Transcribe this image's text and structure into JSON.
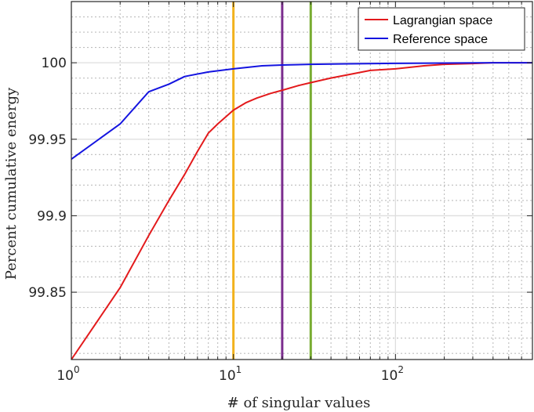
{
  "chart_data": {
    "type": "line",
    "x_scale": "log",
    "xlabel": "# of singular values",
    "ylabel": "Percent cumulative energy",
    "xlim": [
      1,
      700
    ],
    "ylim": [
      99.806,
      100.04
    ],
    "x_ticks": [
      {
        "value": 1,
        "base": "10",
        "exp": "0"
      },
      {
        "value": 10,
        "base": "10",
        "exp": "1"
      },
      {
        "value": 100,
        "base": "10",
        "exp": "2"
      }
    ],
    "y_ticks": [
      {
        "value": 99.85,
        "label": "99.85"
      },
      {
        "value": 99.9,
        "label": "99.9"
      },
      {
        "value": 99.95,
        "label": "99.95"
      },
      {
        "value": 100,
        "label": "100"
      }
    ],
    "grid": true,
    "legend_position": "top-right",
    "series": [
      {
        "name": "Lagrangian space",
        "color": "#e31a1c",
        "x": [
          1,
          2,
          3,
          4,
          5,
          6,
          7,
          8,
          10,
          12,
          14,
          17,
          20,
          25,
          30,
          40,
          50,
          70,
          100,
          150,
          200,
          300,
          400,
          500,
          700
        ],
        "y": [
          99.806,
          99.853,
          99.887,
          99.91,
          99.927,
          99.942,
          99.954,
          99.96,
          99.969,
          99.974,
          99.977,
          99.98,
          99.982,
          99.985,
          99.987,
          99.99,
          99.992,
          99.995,
          99.996,
          99.998,
          99.999,
          99.9995,
          100.0,
          100.0,
          100.0
        ]
      },
      {
        "name": "Reference space",
        "color": "#1414e0",
        "x": [
          1,
          2,
          3,
          4,
          5,
          7,
          10,
          15,
          20,
          30,
          50,
          100,
          200,
          400,
          700
        ],
        "y": [
          99.937,
          99.96,
          99.981,
          99.986,
          99.991,
          99.994,
          99.996,
          99.998,
          99.9985,
          99.999,
          99.9993,
          99.9996,
          99.9998,
          100.0,
          100.0
        ]
      }
    ],
    "vertical_lines": [
      {
        "x": 10,
        "color": "#f2b21c"
      },
      {
        "x": 20,
        "color": "#7b2d8e"
      },
      {
        "x": 30,
        "color": "#77ac30"
      }
    ]
  }
}
